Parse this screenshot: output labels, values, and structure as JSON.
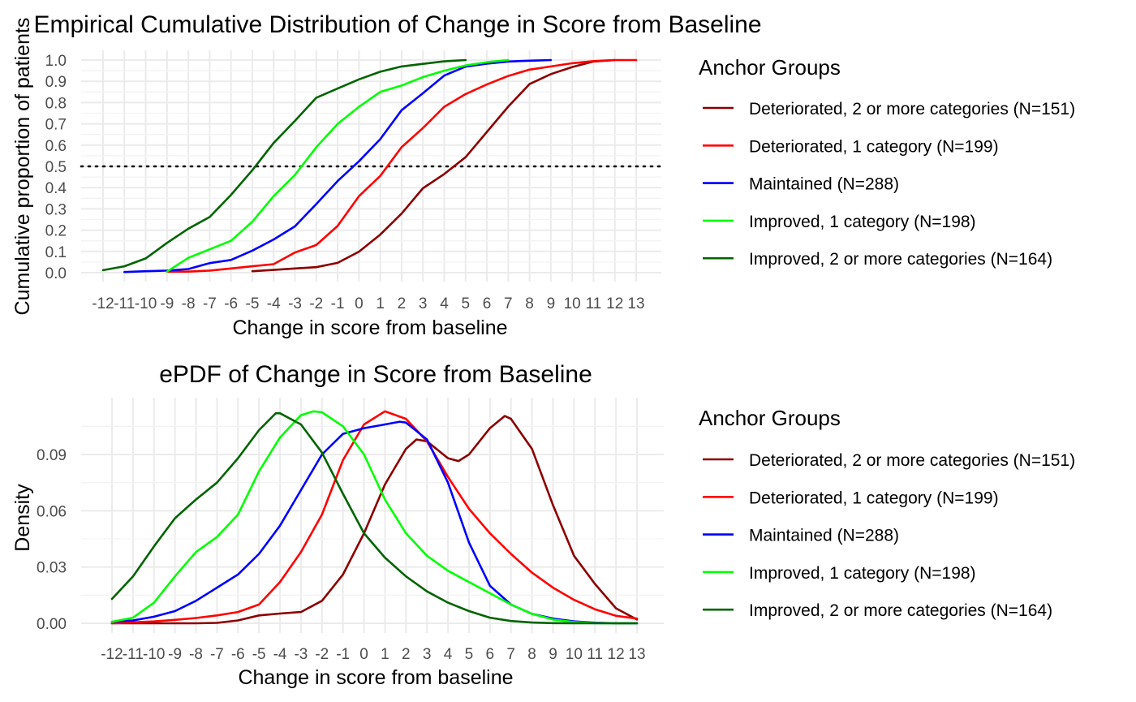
{
  "chart_data": [
    {
      "type": "line",
      "title": "Empirical Cumulative Distribution of Change in Score from Baseline",
      "xlabel": "Change in score from baseline",
      "ylabel": "Cumulative proportion of patients",
      "xlim": [
        -12,
        13
      ],
      "ylim": [
        0,
        1
      ],
      "x_ticks": [
        "-12",
        "-11",
        "-10",
        "-9",
        "-8",
        "-7",
        "-6",
        "-5",
        "-4",
        "-3",
        "-2",
        "-1",
        "0",
        "1",
        "2",
        "3",
        "4",
        "5",
        "6",
        "7",
        "8",
        "9",
        "10",
        "11",
        "12",
        "13"
      ],
      "y_ticks": [
        "0.0",
        "0.1",
        "0.2",
        "0.3",
        "0.4",
        "0.5",
        "0.6",
        "0.7",
        "0.8",
        "0.9",
        "1.0"
      ],
      "reference_line": {
        "y": 0.5,
        "style": "dotted"
      },
      "grid": true,
      "legend": {
        "title": "Anchor Groups",
        "position": "right"
      },
      "series": [
        {
          "name": "Deteriorated, 2 or more categories (N=151)",
          "color": "#8B0000",
          "points": [
            [
              -5,
              0.007
            ],
            [
              -4,
              0.013
            ],
            [
              -3,
              0.02
            ],
            [
              -2,
              0.026
            ],
            [
              -1,
              0.046
            ],
            [
              0,
              0.099
            ],
            [
              1,
              0.179
            ],
            [
              2,
              0.278
            ],
            [
              3,
              0.397
            ],
            [
              4,
              0.464
            ],
            [
              5,
              0.543
            ],
            [
              6,
              0.662
            ],
            [
              7,
              0.781
            ],
            [
              8,
              0.887
            ],
            [
              9,
              0.934
            ],
            [
              10,
              0.967
            ],
            [
              11,
              0.993
            ],
            [
              12,
              1.0
            ]
          ]
        },
        {
          "name": "Deteriorated, 1 category (N=199)",
          "color": "#FF0000",
          "points": [
            [
              -9,
              0.005
            ],
            [
              -8,
              0.005
            ],
            [
              -7,
              0.01
            ],
            [
              -6,
              0.02
            ],
            [
              -5,
              0.03
            ],
            [
              -4,
              0.04
            ],
            [
              -3,
              0.095
            ],
            [
              -2,
              0.13
            ],
            [
              -1,
              0.22
            ],
            [
              0,
              0.36
            ],
            [
              1,
              0.455
            ],
            [
              2,
              0.59
            ],
            [
              3,
              0.68
            ],
            [
              4,
              0.78
            ],
            [
              5,
              0.84
            ],
            [
              6,
              0.885
            ],
            [
              7,
              0.925
            ],
            [
              8,
              0.955
            ],
            [
              9,
              0.97
            ],
            [
              10,
              0.985
            ],
            [
              11,
              0.995
            ],
            [
              12,
              1.0
            ],
            [
              13,
              1.0
            ]
          ]
        },
        {
          "name": "Maintained (N=288)",
          "color": "#0000FF",
          "points": [
            [
              -11,
              0.003
            ],
            [
              -10,
              0.007
            ],
            [
              -9,
              0.01
            ],
            [
              -8,
              0.017
            ],
            [
              -7,
              0.045
            ],
            [
              -6,
              0.06
            ],
            [
              -5,
              0.104
            ],
            [
              -4,
              0.156
            ],
            [
              -3,
              0.218
            ],
            [
              -2,
              0.323
            ],
            [
              -1,
              0.431
            ],
            [
              0,
              0.524
            ],
            [
              1,
              0.628
            ],
            [
              2,
              0.764
            ],
            [
              3,
              0.844
            ],
            [
              4,
              0.927
            ],
            [
              5,
              0.969
            ],
            [
              6,
              0.983
            ],
            [
              7,
              0.993
            ],
            [
              8,
              0.997
            ],
            [
              9,
              1.0
            ]
          ]
        },
        {
          "name": "Improved, 1 category (N=198)",
          "color": "#00FF00",
          "points": [
            [
              -9,
              0.005
            ],
            [
              -8,
              0.07
            ],
            [
              -7,
              0.11
            ],
            [
              -6,
              0.15
            ],
            [
              -5,
              0.24
            ],
            [
              -4,
              0.36
            ],
            [
              -3,
              0.46
            ],
            [
              -2,
              0.59
            ],
            [
              -1,
              0.7
            ],
            [
              0,
              0.78
            ],
            [
              1,
              0.85
            ],
            [
              2,
              0.88
            ],
            [
              3,
              0.92
            ],
            [
              4,
              0.95
            ],
            [
              5,
              0.975
            ],
            [
              6,
              0.99
            ],
            [
              7,
              1.0
            ]
          ]
        },
        {
          "name": "Improved, 2 or more categories (N=164)",
          "color": "#006400",
          "points": [
            [
              -12,
              0.012
            ],
            [
              -11,
              0.03
            ],
            [
              -10,
              0.067
            ],
            [
              -9,
              0.14
            ],
            [
              -8,
              0.207
            ],
            [
              -7,
              0.262
            ],
            [
              -6,
              0.366
            ],
            [
              -5,
              0.482
            ],
            [
              -4,
              0.61
            ],
            [
              -3,
              0.714
            ],
            [
              -2,
              0.823
            ],
            [
              -1,
              0.866
            ],
            [
              0,
              0.909
            ],
            [
              1,
              0.945
            ],
            [
              2,
              0.97
            ],
            [
              3,
              0.982
            ],
            [
              4,
              0.994
            ],
            [
              5,
              1.0
            ]
          ]
        }
      ]
    },
    {
      "type": "line",
      "title": "ePDF of Change in Score from Baseline",
      "xlabel": "Change in score from baseline",
      "ylabel": "Density",
      "xlim": [
        -12,
        13
      ],
      "ylim": [
        0,
        0.1135
      ],
      "x_ticks": [
        "-12",
        "-11",
        "-10",
        "-9",
        "-8",
        "-7",
        "-6",
        "-5",
        "-4",
        "-3",
        "-2",
        "-1",
        "0",
        "1",
        "2",
        "3",
        "4",
        "5",
        "6",
        "7",
        "8",
        "9",
        "10",
        "11",
        "12",
        "13"
      ],
      "y_ticks": [
        "0.00",
        "0.03",
        "0.06",
        "0.09"
      ],
      "grid": true,
      "legend": {
        "title": "Anchor Groups",
        "position": "right"
      },
      "series": [
        {
          "name": "Deteriorated, 2 or more categories (N=151)",
          "color": "#8B0000",
          "points": [
            [
              -12,
              0.0
            ],
            [
              -8,
              0.0
            ],
            [
              -7,
              0.0002
            ],
            [
              -6,
              0.0015
            ],
            [
              -5,
              0.0042
            ],
            [
              -4,
              0.0052
            ],
            [
              -3,
              0.006
            ],
            [
              -2,
              0.012
            ],
            [
              -1,
              0.026
            ],
            [
              0,
              0.048
            ],
            [
              1,
              0.074
            ],
            [
              2,
              0.093
            ],
            [
              2.5,
              0.098
            ],
            [
              3,
              0.097
            ],
            [
              4,
              0.088
            ],
            [
              4.5,
              0.0865
            ],
            [
              5,
              0.09
            ],
            [
              6,
              0.104
            ],
            [
              6.7,
              0.1105
            ],
            [
              7,
              0.109
            ],
            [
              8,
              0.093
            ],
            [
              9,
              0.063
            ],
            [
              10,
              0.036
            ],
            [
              11,
              0.021
            ],
            [
              12,
              0.008
            ],
            [
              13,
              0.002
            ]
          ]
        },
        {
          "name": "Deteriorated, 1 category (N=199)",
          "color": "#FF0000",
          "points": [
            [
              -12,
              0.0
            ],
            [
              -11,
              0.0005
            ],
            [
              -10,
              0.001
            ],
            [
              -9,
              0.0018
            ],
            [
              -8,
              0.0028
            ],
            [
              -7,
              0.0042
            ],
            [
              -6,
              0.006
            ],
            [
              -5,
              0.01
            ],
            [
              -4,
              0.022
            ],
            [
              -3,
              0.038
            ],
            [
              -2,
              0.058
            ],
            [
              -1,
              0.087
            ],
            [
              0,
              0.106
            ],
            [
              1,
              0.113
            ],
            [
              2,
              0.109
            ],
            [
              3,
              0.097
            ],
            [
              4,
              0.078
            ],
            [
              5,
              0.061
            ],
            [
              6,
              0.048
            ],
            [
              7,
              0.037
            ],
            [
              8,
              0.027
            ],
            [
              9,
              0.019
            ],
            [
              10,
              0.0125
            ],
            [
              11,
              0.0075
            ],
            [
              12,
              0.004
            ],
            [
              13,
              0.0025
            ]
          ]
        },
        {
          "name": "Maintained (N=288)",
          "color": "#0000FF",
          "points": [
            [
              -12,
              0.0008
            ],
            [
              -11,
              0.0015
            ],
            [
              -10,
              0.0035
            ],
            [
              -9,
              0.0065
            ],
            [
              -8,
              0.012
            ],
            [
              -7,
              0.019
            ],
            [
              -6,
              0.026
            ],
            [
              -5,
              0.037
            ],
            [
              -4,
              0.052
            ],
            [
              -3,
              0.071
            ],
            [
              -2,
              0.09
            ],
            [
              -1,
              0.101
            ],
            [
              0,
              0.104
            ],
            [
              1,
              0.106
            ],
            [
              1.7,
              0.1075
            ],
            [
              2,
              0.107
            ],
            [
              3,
              0.098
            ],
            [
              4,
              0.075
            ],
            [
              5,
              0.043
            ],
            [
              6,
              0.02
            ],
            [
              7,
              0.01
            ],
            [
              8,
              0.005
            ],
            [
              9,
              0.0025
            ],
            [
              10,
              0.001
            ],
            [
              11,
              0.0003
            ],
            [
              12,
              0.0
            ],
            [
              13,
              0.0
            ]
          ]
        },
        {
          "name": "Improved, 1 category (N=198)",
          "color": "#00FF00",
          "points": [
            [
              -12,
              0.0008
            ],
            [
              -11,
              0.003
            ],
            [
              -10,
              0.011
            ],
            [
              -9,
              0.025
            ],
            [
              -8,
              0.038
            ],
            [
              -7,
              0.046
            ],
            [
              -6,
              0.058
            ],
            [
              -5,
              0.081
            ],
            [
              -4,
              0.099
            ],
            [
              -3,
              0.111
            ],
            [
              -2.4,
              0.113
            ],
            [
              -2,
              0.1125
            ],
            [
              -1,
              0.105
            ],
            [
              0,
              0.09
            ],
            [
              1,
              0.066
            ],
            [
              2,
              0.048
            ],
            [
              3,
              0.036
            ],
            [
              4,
              0.028
            ],
            [
              5,
              0.022
            ],
            [
              6,
              0.016
            ],
            [
              7,
              0.01
            ],
            [
              8,
              0.005
            ],
            [
              9,
              0.002
            ],
            [
              10,
              0.0006
            ],
            [
              11,
              0.0001
            ],
            [
              12,
              0.0
            ],
            [
              13,
              0.0
            ]
          ]
        },
        {
          "name": "Improved, 2 or more categories (N=164)",
          "color": "#006400",
          "points": [
            [
              -12,
              0.013
            ],
            [
              -11,
              0.025
            ],
            [
              -10,
              0.041
            ],
            [
              -9,
              0.056
            ],
            [
              -8,
              0.066
            ],
            [
              -7,
              0.075
            ],
            [
              -6,
              0.088
            ],
            [
              -5,
              0.103
            ],
            [
              -4.2,
              0.112
            ],
            [
              -4,
              0.112
            ],
            [
              -3,
              0.106
            ],
            [
              -2,
              0.091
            ],
            [
              -1,
              0.069
            ],
            [
              0,
              0.048
            ],
            [
              1,
              0.035
            ],
            [
              2,
              0.025
            ],
            [
              3,
              0.017
            ],
            [
              4,
              0.011
            ],
            [
              5,
              0.0065
            ],
            [
              6,
              0.003
            ],
            [
              7,
              0.0012
            ],
            [
              8,
              0.0004
            ],
            [
              9,
              0.0001
            ],
            [
              10,
              0.0
            ],
            [
              13,
              0.0
            ]
          ]
        }
      ]
    }
  ]
}
